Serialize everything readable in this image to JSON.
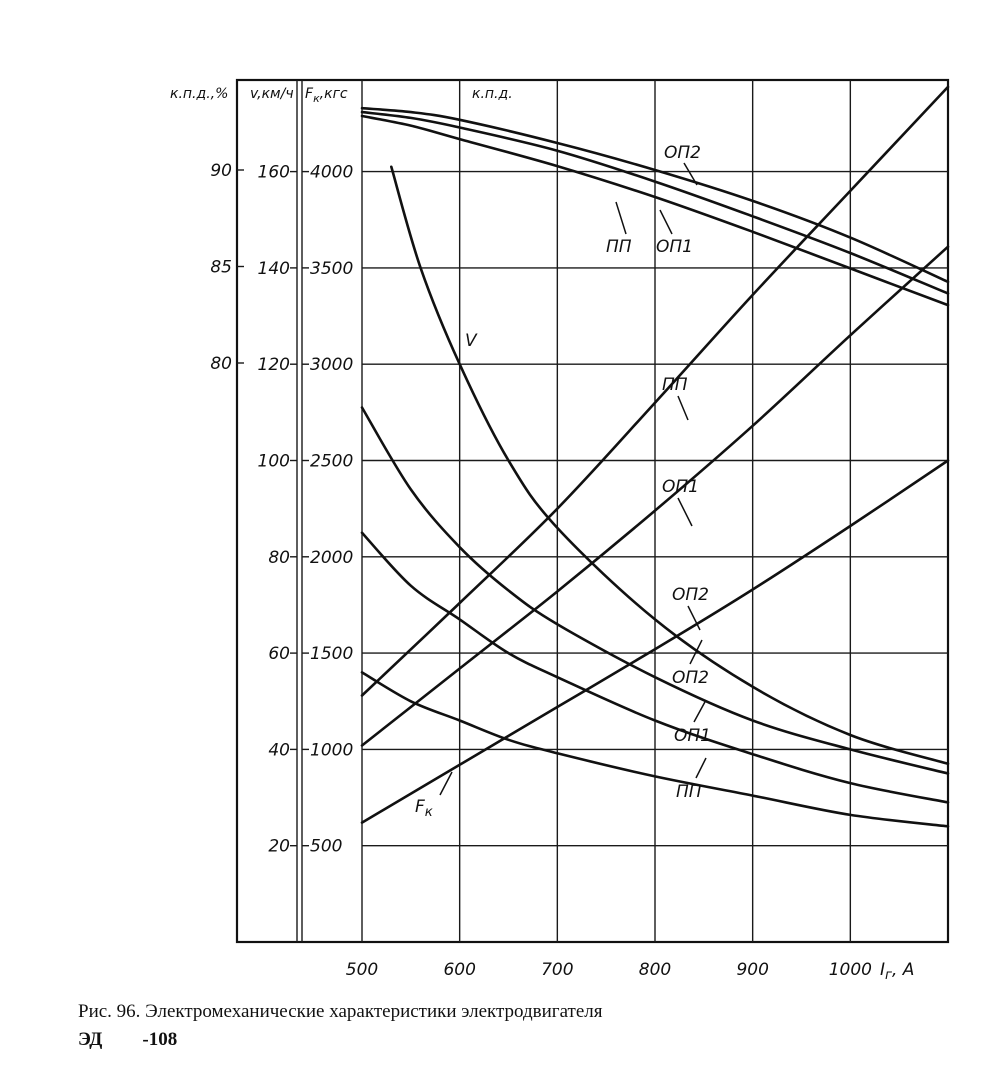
{
  "chart_data": {
    "type": "line",
    "title": "",
    "x_axis": {
      "label": "I_г, А",
      "label_base": "I",
      "label_sub": "г",
      "label_unit": ", А",
      "range": [
        500,
        1100
      ],
      "ticks": [
        500,
        600,
        700,
        800,
        900,
        1000
      ]
    },
    "y_axes": [
      {
        "name": "eff",
        "header": "к.п.д.,%",
        "ticks": [
          80,
          85,
          90
        ],
        "range": [
          75,
          95
        ]
      },
      {
        "name": "v",
        "header": "v,км/ч",
        "ticks": [
          20,
          40,
          60,
          80,
          100,
          120,
          140,
          160
        ],
        "range": [
          0,
          180
        ]
      },
      {
        "name": "F",
        "header": "F_к,кгс",
        "header_base": "F",
        "header_sub": "к",
        "header_unit": ",кгс",
        "ticks": [
          500,
          1000,
          1500,
          2000,
          2500,
          3000,
          3500,
          4000
        ],
        "range": [
          0,
          4500
        ]
      }
    ],
    "top_annotation": "к.п.д.",
    "series": [
      {
        "name": "ОП2",
        "quantity": "eff",
        "x": [
          500,
          550,
          600,
          700,
          800,
          900,
          1000,
          1100
        ],
        "y": [
          93.2,
          93.0,
          92.6,
          91.4,
          90.0,
          88.4,
          86.5,
          84.2
        ]
      },
      {
        "name": "ОП1",
        "quantity": "eff",
        "x": [
          500,
          550,
          600,
          700,
          800,
          900,
          1000,
          1100
        ],
        "y": [
          93.0,
          92.7,
          92.2,
          91.0,
          89.4,
          87.6,
          85.7,
          83.6
        ]
      },
      {
        "name": "ПП",
        "quantity": "eff",
        "x": [
          500,
          550,
          600,
          700,
          800,
          900,
          1000,
          1100
        ],
        "y": [
          92.8,
          92.3,
          91.6,
          90.2,
          88.6,
          86.8,
          84.9,
          83.0
        ]
      },
      {
        "name": "V",
        "quantity": "v",
        "x": [
          530,
          560,
          600,
          650,
          700,
          800,
          900,
          1000,
          1100
        ],
        "y": [
          161,
          140,
          120,
          100,
          86,
          67,
          53,
          43,
          37
        ]
      },
      {
        "name": "ОП2",
        "quantity": "v",
        "x": [
          500,
          550,
          600,
          650,
          700,
          800,
          900,
          1000,
          1100
        ],
        "y": [
          111,
          94,
          82,
          73,
          66,
          55,
          46,
          40,
          35
        ]
      },
      {
        "name": "ОП1",
        "quantity": "v",
        "x": [
          500,
          550,
          600,
          650,
          700,
          800,
          900,
          1000,
          1100
        ],
        "y": [
          85,
          74,
          67,
          60,
          55,
          46,
          39,
          33,
          29
        ]
      },
      {
        "name": "ПП",
        "quantity": "v",
        "x": [
          500,
          550,
          600,
          650,
          700,
          800,
          900,
          1000,
          1100
        ],
        "y": [
          1400,
          1250,
          1150,
          1050,
          980,
          860,
          760,
          660,
          600
        ],
        "y_axis": "F"
      },
      {
        "name": "ПП",
        "quantity": "F",
        "x": [
          500,
          600,
          700,
          800,
          900,
          1000,
          1100
        ],
        "y": [
          1280,
          1760,
          2250,
          2800,
          3360,
          3900,
          4440
        ]
      },
      {
        "name": "ОП1",
        "quantity": "F",
        "x": [
          500,
          600,
          700,
          800,
          900,
          1000,
          1100
        ],
        "y": [
          1020,
          1420,
          1820,
          2240,
          2680,
          3150,
          3610
        ]
      },
      {
        "name": "F_к",
        "quantity": "F",
        "x": [
          500,
          600,
          700,
          800,
          900,
          1000,
          1100
        ],
        "y": [
          620,
          920,
          1220,
          1520,
          1830,
          2160,
          2500
        ]
      }
    ],
    "curve_labels": {
      "eff_op2": "ОП2",
      "eff_op1": "ОП1",
      "eff_pp": "ПП",
      "v": "V",
      "f_pp": "ПП",
      "f_op1": "ОП1",
      "f_op2": "ОП2",
      "v_op2": "ОП2",
      "v_op1": "ОП1",
      "v_pp": "ПП",
      "fk_base": "F",
      "fk_sub": "к"
    },
    "grid": true,
    "legend": "none"
  },
  "caption": {
    "line1": "Рис. 96. Электромеханические   характеристики   электродвигателя",
    "line2_a": "ЭД",
    "line2_b": "-108"
  }
}
